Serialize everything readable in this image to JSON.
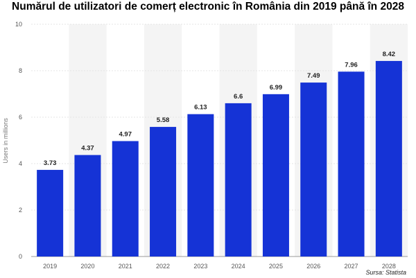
{
  "chart_data": {
    "type": "bar",
    "title": "Numărul de utilizatori de comerț electronic în România din 2019 până în 2028",
    "ylabel": "Users in millions",
    "xlabel": "",
    "categories": [
      "2019",
      "2020",
      "2021",
      "2022",
      "2023",
      "2024",
      "2025",
      "2026",
      "2027",
      "2028"
    ],
    "values": [
      3.73,
      4.37,
      4.97,
      5.58,
      6.13,
      6.6,
      6.99,
      7.49,
      7.96,
      8.42
    ],
    "value_labels": [
      "3.73",
      "4.37",
      "4.97",
      "5.58",
      "6.13",
      "6.6",
      "6.99",
      "7.49",
      "7.96",
      "8.42"
    ],
    "ylim": [
      0,
      10
    ],
    "yticks": [
      "0",
      "2",
      "4",
      "6",
      "8",
      "10"
    ],
    "grid": true,
    "legend": "none",
    "bar_color": "#1533d6",
    "band_color": "#f4f4f4",
    "source": "Sursa: Statista"
  }
}
